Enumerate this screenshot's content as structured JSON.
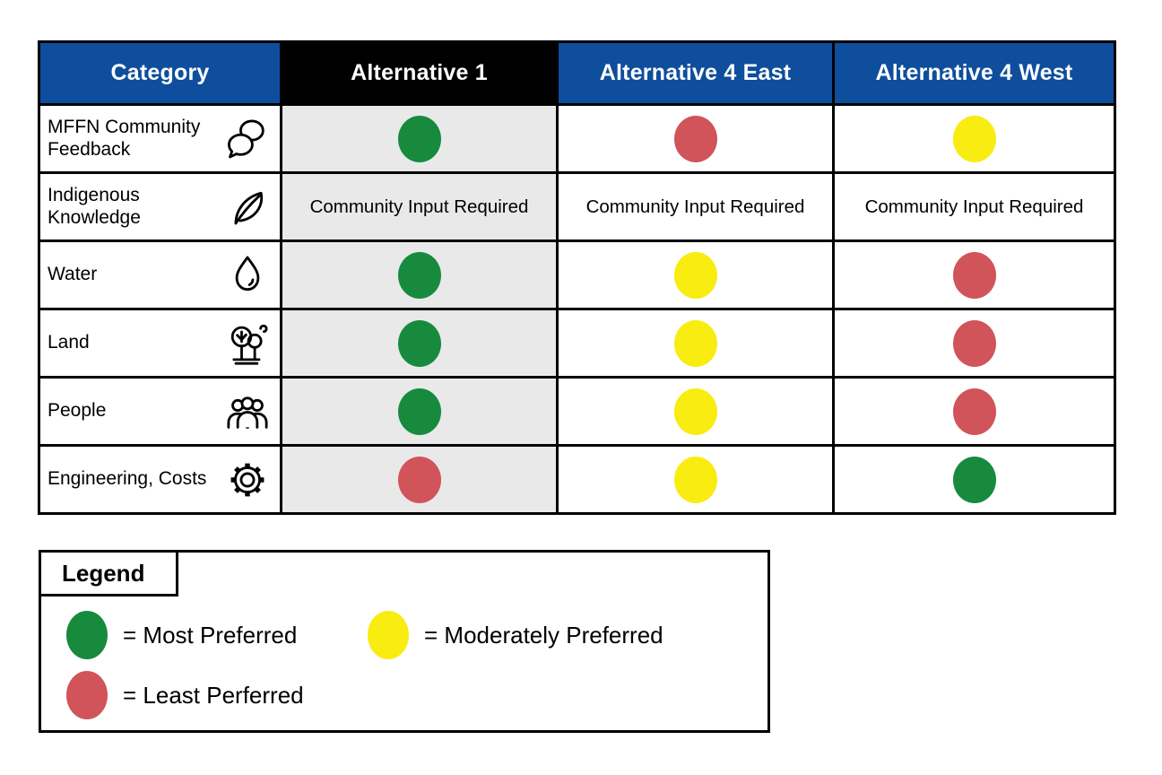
{
  "table": {
    "columns": [
      {
        "label": "Category",
        "style": "blue"
      },
      {
        "label": "Alternative 1",
        "style": "black"
      },
      {
        "label": "Alternative 4 East",
        "style": "blue"
      },
      {
        "label": "Alternative 4 West",
        "style": "blue"
      }
    ],
    "input_required_text": "Community Input Required",
    "rows": [
      {
        "category": "MFFN Community Feedback",
        "icon": "chat-icon",
        "cells": [
          "most",
          "least",
          "moderate"
        ]
      },
      {
        "category": "Indigenous Knowledge",
        "icon": "feather-icon",
        "cells": [
          "input",
          "input",
          "input"
        ]
      },
      {
        "category": "Water",
        "icon": "droplet-icon",
        "cells": [
          "most",
          "moderate",
          "least"
        ]
      },
      {
        "category": "Land",
        "icon": "tree-icon",
        "cells": [
          "most",
          "moderate",
          "least"
        ]
      },
      {
        "category": "People",
        "icon": "people-icon",
        "cells": [
          "most",
          "moderate",
          "least"
        ]
      },
      {
        "category": "Engineering, Costs",
        "icon": "gear-icon",
        "cells": [
          "least",
          "moderate",
          "most"
        ]
      }
    ]
  },
  "ratings": {
    "most": {
      "color": "#178A3E",
      "meaning": "Most Preferred"
    },
    "moderate": {
      "color": "#F8EC11",
      "meaning": "Moderately Preferred"
    },
    "least": {
      "color": "#D05459",
      "meaning": "Least Perferred"
    }
  },
  "legend": {
    "title": "Legend",
    "items": [
      {
        "rating": "most",
        "label": "= Most Preferred"
      },
      {
        "rating": "moderate",
        "label": "= Moderately Preferred"
      },
      {
        "rating": "least",
        "label": "= Least Perferred"
      }
    ]
  },
  "colors": {
    "header_blue": "#0E4E9C",
    "header_black": "#000000",
    "alt1_column_bg": "#E9E9E9",
    "green": "#178A3E",
    "yellow": "#F8EC11",
    "red": "#D05459",
    "border": "#000000"
  },
  "chart_data": {
    "type": "table",
    "columns": [
      "Category",
      "Alternative 1",
      "Alternative 4 East",
      "Alternative 4 West"
    ],
    "rows": [
      [
        "MFFN Community Feedback",
        "Most Preferred",
        "Least Preferred",
        "Moderately Preferred"
      ],
      [
        "Indigenous Knowledge",
        "Community Input Required",
        "Community Input Required",
        "Community Input Required"
      ],
      [
        "Water",
        "Most Preferred",
        "Moderately Preferred",
        "Least Preferred"
      ],
      [
        "Land",
        "Most Preferred",
        "Moderately Preferred",
        "Least Preferred"
      ],
      [
        "People",
        "Most Preferred",
        "Moderately Preferred",
        "Least Preferred"
      ],
      [
        "Engineering, Costs",
        "Least Preferred",
        "Moderately Preferred",
        "Most Preferred"
      ]
    ],
    "legend": {
      "green": "Most Preferred",
      "yellow": "Moderately Preferred",
      "red": "Least Perferred"
    },
    "notes": "Color-coded alternatives evaluation matrix; Alternative 1 column shaded gray; header row blue except Alternative 1 in black."
  }
}
